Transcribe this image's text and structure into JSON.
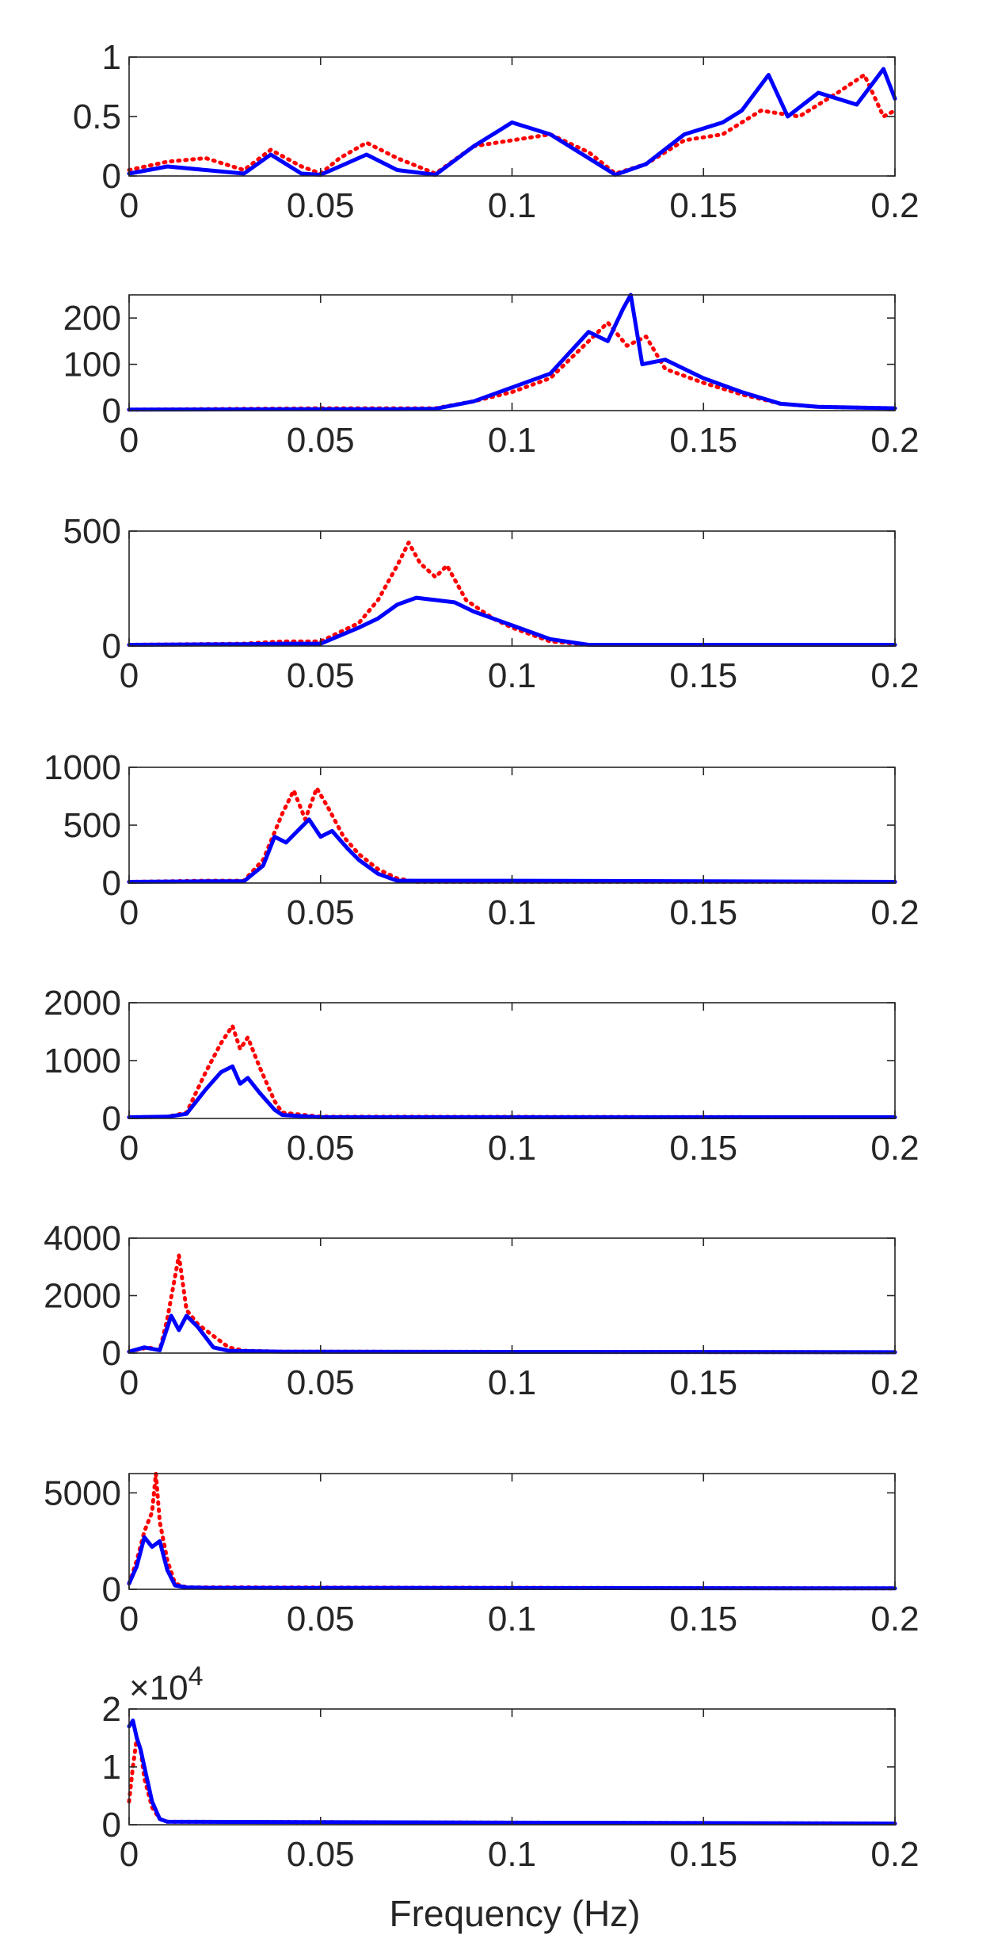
{
  "figure": {
    "xlabel": "Frequency (Hz)"
  },
  "colors": {
    "series_a": "#ff0000",
    "series_b": "#0000ff",
    "axis": "#262626"
  },
  "chart_data": [
    {
      "type": "line",
      "xlim": [
        0,
        0.2
      ],
      "ylim": [
        0,
        1
      ],
      "xticks": [
        "0",
        "0.05",
        "0.1",
        "0.15",
        "0.2"
      ],
      "yticks": [
        {
          "v": 0,
          "label": "0"
        },
        {
          "v": 0.5,
          "label": "0.5"
        },
        {
          "v": 1,
          "label": "1"
        }
      ],
      "exponent": "",
      "series": [
        {
          "style": "dotted",
          "color": "#ff0000",
          "x": [
            0,
            0.01,
            0.02,
            0.03,
            0.037,
            0.045,
            0.05,
            0.055,
            0.062,
            0.07,
            0.08,
            0.09,
            0.1,
            0.11,
            0.12,
            0.127,
            0.135,
            0.145,
            0.155,
            0.165,
            0.175,
            0.185,
            0.192,
            0.197,
            0.2
          ],
          "y": [
            0.05,
            0.12,
            0.15,
            0.05,
            0.22,
            0.08,
            0.02,
            0.15,
            0.28,
            0.15,
            0.02,
            0.25,
            0.3,
            0.35,
            0.2,
            0.02,
            0.1,
            0.3,
            0.35,
            0.55,
            0.5,
            0.7,
            0.85,
            0.5,
            0.55
          ]
        },
        {
          "style": "solid",
          "color": "#0000ff",
          "x": [
            0,
            0.01,
            0.02,
            0.03,
            0.037,
            0.045,
            0.05,
            0.055,
            0.062,
            0.07,
            0.08,
            0.09,
            0.1,
            0.11,
            0.12,
            0.127,
            0.135,
            0.145,
            0.155,
            0.16,
            0.167,
            0.172,
            0.18,
            0.19,
            0.197,
            0.2
          ],
          "y": [
            0.02,
            0.08,
            0.05,
            0.02,
            0.18,
            0.02,
            0.01,
            0.08,
            0.18,
            0.05,
            0.01,
            0.25,
            0.45,
            0.35,
            0.15,
            0.01,
            0.1,
            0.35,
            0.45,
            0.55,
            0.85,
            0.5,
            0.7,
            0.6,
            0.9,
            0.65
          ]
        }
      ]
    },
    {
      "type": "line",
      "xlim": [
        0,
        0.2
      ],
      "ylim": [
        0,
        250
      ],
      "xticks": [
        "0",
        "0.05",
        "0.1",
        "0.15",
        "0.2"
      ],
      "yticks": [
        {
          "v": 0,
          "label": "0"
        },
        {
          "v": 100,
          "label": "100"
        },
        {
          "v": 200,
          "label": "200"
        }
      ],
      "exponent": "",
      "series": [
        {
          "style": "dotted",
          "color": "#ff0000",
          "x": [
            0,
            0.05,
            0.07,
            0.08,
            0.09,
            0.1,
            0.11,
            0.12,
            0.125,
            0.13,
            0.135,
            0.14,
            0.15,
            0.16,
            0.17,
            0.18,
            0.2
          ],
          "y": [
            2,
            5,
            5,
            5,
            20,
            40,
            70,
            150,
            190,
            140,
            160,
            90,
            60,
            35,
            15,
            8,
            5
          ]
        },
        {
          "style": "solid",
          "color": "#0000ff",
          "x": [
            0,
            0.05,
            0.07,
            0.08,
            0.09,
            0.1,
            0.11,
            0.12,
            0.125,
            0.129,
            0.131,
            0.134,
            0.14,
            0.15,
            0.16,
            0.17,
            0.18,
            0.2
          ],
          "y": [
            2,
            3,
            3,
            4,
            20,
            50,
            80,
            170,
            150,
            220,
            250,
            100,
            110,
            70,
            40,
            15,
            8,
            5
          ]
        }
      ]
    },
    {
      "type": "line",
      "xlim": [
        0,
        0.2
      ],
      "ylim": [
        0,
        500
      ],
      "xticks": [
        "0",
        "0.05",
        "0.1",
        "0.15",
        "0.2"
      ],
      "yticks": [
        {
          "v": 0,
          "label": "0"
        },
        {
          "v": 500,
          "label": "500"
        }
      ],
      "exponent": "",
      "series": [
        {
          "style": "dotted",
          "color": "#ff0000",
          "x": [
            0,
            0.03,
            0.04,
            0.05,
            0.06,
            0.065,
            0.07,
            0.073,
            0.076,
            0.08,
            0.083,
            0.088,
            0.095,
            0.1,
            0.11,
            0.12,
            0.2
          ],
          "y": [
            5,
            10,
            20,
            20,
            100,
            200,
            350,
            450,
            360,
            300,
            350,
            200,
            120,
            80,
            20,
            5,
            5
          ]
        },
        {
          "style": "solid",
          "color": "#0000ff",
          "x": [
            0,
            0.03,
            0.04,
            0.05,
            0.06,
            0.065,
            0.07,
            0.075,
            0.08,
            0.085,
            0.09,
            0.1,
            0.11,
            0.12,
            0.2
          ],
          "y": [
            5,
            8,
            10,
            10,
            80,
            120,
            180,
            210,
            200,
            190,
            150,
            90,
            30,
            5,
            5
          ]
        }
      ]
    },
    {
      "type": "line",
      "xlim": [
        0,
        0.2
      ],
      "ylim": [
        0,
        1000
      ],
      "xticks": [
        "0",
        "0.05",
        "0.1",
        "0.15",
        "0.2"
      ],
      "yticks": [
        {
          "v": 0,
          "label": "0"
        },
        {
          "v": 500,
          "label": "500"
        },
        {
          "v": 1000,
          "label": "1000"
        }
      ],
      "exponent": "",
      "series": [
        {
          "style": "dotted",
          "color": "#ff0000",
          "x": [
            0,
            0.02,
            0.03,
            0.035,
            0.04,
            0.043,
            0.046,
            0.049,
            0.052,
            0.056,
            0.06,
            0.065,
            0.07,
            0.075,
            0.2
          ],
          "y": [
            10,
            20,
            20,
            200,
            600,
            800,
            550,
            820,
            650,
            400,
            250,
            120,
            40,
            10,
            10
          ]
        },
        {
          "style": "solid",
          "color": "#0000ff",
          "x": [
            0,
            0.02,
            0.03,
            0.035,
            0.038,
            0.041,
            0.044,
            0.047,
            0.05,
            0.053,
            0.057,
            0.06,
            0.065,
            0.07,
            0.1,
            0.2
          ],
          "y": [
            10,
            15,
            15,
            150,
            400,
            350,
            450,
            550,
            400,
            450,
            300,
            200,
            80,
            20,
            20,
            10
          ]
        }
      ]
    },
    {
      "type": "line",
      "xlim": [
        0,
        0.2
      ],
      "ylim": [
        0,
        2000
      ],
      "xticks": [
        "0",
        "0.05",
        "0.1",
        "0.15",
        "0.2"
      ],
      "yticks": [
        {
          "v": 0,
          "label": "0"
        },
        {
          "v": 1000,
          "label": "1000"
        },
        {
          "v": 2000,
          "label": "2000"
        }
      ],
      "exponent": "",
      "series": [
        {
          "style": "dotted",
          "color": "#ff0000",
          "x": [
            0,
            0.01,
            0.015,
            0.02,
            0.024,
            0.027,
            0.029,
            0.031,
            0.034,
            0.038,
            0.04,
            0.05,
            0.2
          ],
          "y": [
            20,
            30,
            100,
            800,
            1300,
            1600,
            1200,
            1400,
            900,
            300,
            100,
            30,
            20
          ]
        },
        {
          "style": "solid",
          "color": "#0000ff",
          "x": [
            0,
            0.01,
            0.015,
            0.02,
            0.024,
            0.027,
            0.029,
            0.031,
            0.034,
            0.038,
            0.04,
            0.05,
            0.2
          ],
          "y": [
            20,
            30,
            80,
            500,
            800,
            900,
            600,
            700,
            450,
            150,
            60,
            20,
            20
          ]
        }
      ]
    },
    {
      "type": "line",
      "xlim": [
        0,
        0.2
      ],
      "ylim": [
        0,
        4000
      ],
      "xticks": [
        "0",
        "0.05",
        "0.1",
        "0.15",
        "0.2"
      ],
      "yticks": [
        {
          "v": 0,
          "label": "0"
        },
        {
          "v": 2000,
          "label": "2000"
        },
        {
          "v": 4000,
          "label": "4000"
        }
      ],
      "exponent": "",
      "series": [
        {
          "style": "dotted",
          "color": "#ff0000",
          "x": [
            0,
            0.005,
            0.008,
            0.01,
            0.013,
            0.015,
            0.018,
            0.022,
            0.026,
            0.03,
            0.04,
            0.2
          ],
          "y": [
            50,
            200,
            100,
            1200,
            3400,
            1500,
            1000,
            600,
            200,
            80,
            50,
            30
          ]
        },
        {
          "style": "solid",
          "color": "#0000ff",
          "x": [
            0,
            0.004,
            0.008,
            0.011,
            0.013,
            0.015,
            0.018,
            0.022,
            0.026,
            0.04,
            0.2
          ],
          "y": [
            50,
            200,
            100,
            1300,
            800,
            1300,
            900,
            200,
            80,
            50,
            30
          ]
        }
      ]
    },
    {
      "type": "line",
      "xlim": [
        0,
        0.2
      ],
      "ylim": [
        0,
        6000
      ],
      "xticks": [
        "0",
        "0.05",
        "0.1",
        "0.15",
        "0.2"
      ],
      "yticks": [
        {
          "v": 0,
          "label": "0"
        },
        {
          "v": 5000,
          "label": "5000"
        }
      ],
      "exponent": "",
      "series": [
        {
          "style": "dotted",
          "color": "#ff0000",
          "x": [
            0,
            0.002,
            0.004,
            0.006,
            0.007,
            0.008,
            0.01,
            0.012,
            0.015,
            0.02,
            0.2
          ],
          "y": [
            300,
            1500,
            3000,
            4000,
            6000,
            3500,
            1500,
            300,
            100,
            100,
            50
          ]
        },
        {
          "style": "solid",
          "color": "#0000ff",
          "x": [
            0,
            0.002,
            0.004,
            0.006,
            0.008,
            0.01,
            0.012,
            0.015,
            0.02,
            0.2
          ],
          "y": [
            300,
            1200,
            2700,
            2200,
            2500,
            1000,
            200,
            100,
            80,
            50
          ]
        }
      ]
    },
    {
      "type": "line",
      "xlim": [
        0,
        0.2
      ],
      "ylim": [
        0,
        2
      ],
      "xticks": [
        "0",
        "0.05",
        "0.1",
        "0.15",
        "0.2"
      ],
      "yticks": [
        {
          "v": 0,
          "label": "0"
        },
        {
          "v": 1,
          "label": "1"
        },
        {
          "v": 2,
          "label": "2"
        }
      ],
      "exponent": "4",
      "series": [
        {
          "style": "dotted",
          "color": "#ff0000",
          "x": [
            0,
            0.001,
            0.002,
            0.003,
            0.004,
            0.006,
            0.008,
            0.01,
            0.2
          ],
          "y": [
            0.4,
            1.0,
            1.5,
            1.3,
            0.8,
            0.3,
            0.1,
            0.05,
            0.02
          ]
        },
        {
          "style": "solid",
          "color": "#0000ff",
          "x": [
            0,
            0.001,
            0.002,
            0.003,
            0.004,
            0.006,
            0.008,
            0.01,
            0.2
          ],
          "y": [
            1.7,
            1.8,
            1.5,
            1.3,
            1.0,
            0.4,
            0.1,
            0.05,
            0.02
          ]
        }
      ]
    }
  ]
}
